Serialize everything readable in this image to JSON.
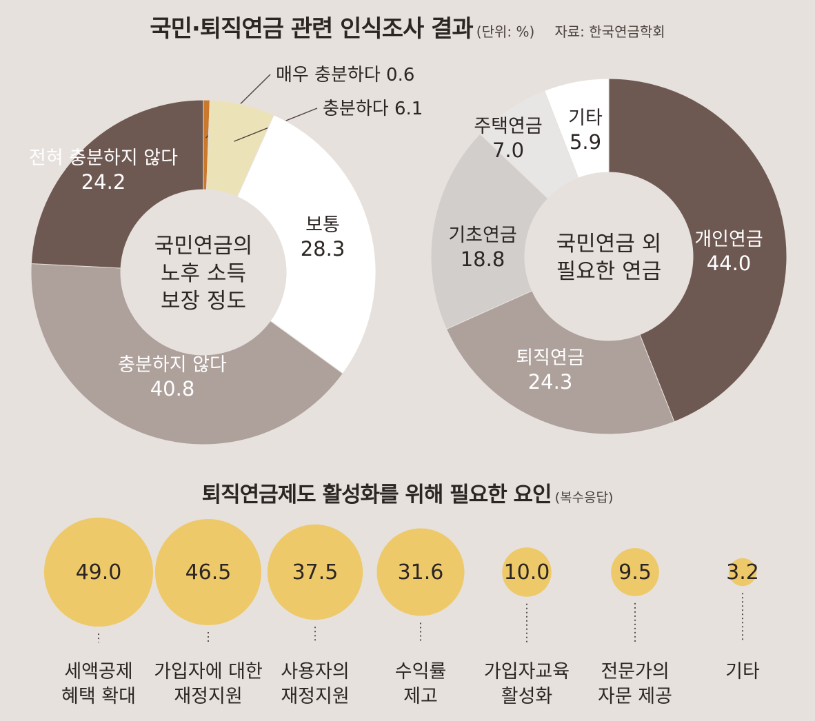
{
  "header": {
    "title": "국민·퇴직연금 관련 인식조사 결과",
    "unit": "(단위: %)",
    "source": "자료: 한국연금학회"
  },
  "chart_data": [
    {
      "type": "pie",
      "center_label": [
        "국민연금의",
        "노후 소득",
        "보장 정도"
      ],
      "slices": [
        {
          "label": "매우 충분하다",
          "value": 0.6,
          "color": "#c9782c"
        },
        {
          "label": "충분하다",
          "value": 6.1,
          "color": "#ece2b8"
        },
        {
          "label": "보통",
          "value": 28.3,
          "color": "#ffffff"
        },
        {
          "label": "충분하지 않다",
          "value": 40.8,
          "color": "#aea09a"
        },
        {
          "label": "전혀 충분하지 않다",
          "value": 24.2,
          "color": "#6e5852"
        }
      ]
    },
    {
      "type": "pie",
      "center_label": [
        "국민연금 외",
        "필요한 연금"
      ],
      "slices": [
        {
          "label": "개인연금",
          "value": 44.0,
          "color": "#6e5852"
        },
        {
          "label": "퇴직연금",
          "value": 24.3,
          "color": "#aea09a"
        },
        {
          "label": "기초연금",
          "value": 18.8,
          "color": "#d2cecc"
        },
        {
          "label": "주택연금",
          "value": 7.0,
          "color": "#e8e6e5"
        },
        {
          "label": "기타",
          "value": 5.9,
          "color": "#ffffff"
        }
      ]
    },
    {
      "type": "bubble",
      "title": "퇴직연금제도 활성화를 위해 필요한 요인",
      "note": "(복수응답)",
      "color": "#efc760",
      "items": [
        {
          "label": [
            "세액공제",
            "혜택 확대"
          ],
          "value": 49.0
        },
        {
          "label": [
            "가입자에 대한",
            "재정지원"
          ],
          "value": 46.5
        },
        {
          "label": [
            "사용자의",
            "재정지원"
          ],
          "value": 37.5
        },
        {
          "label": [
            "수익률",
            "제고"
          ],
          "value": 31.6
        },
        {
          "label": [
            "가입자교육",
            "활성화"
          ],
          "value": 10.0
        },
        {
          "label": [
            "전문가의",
            "자문 제공"
          ],
          "value": 9.5
        },
        {
          "label": [
            "기타"
          ],
          "value": 3.2
        }
      ]
    }
  ]
}
